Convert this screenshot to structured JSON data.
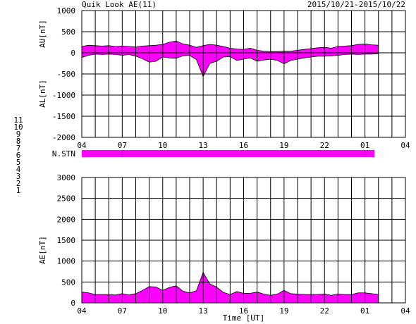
{
  "header": {
    "title": "Quik Look AE(11)",
    "date_range": "2015/10/21-2015/10/22"
  },
  "colors": {
    "fill": "#ff00ff",
    "grid": "#000000",
    "bar_line": "#3030ff"
  },
  "station_counts": [
    {
      "label": "11",
      "color": "#00e5e5"
    },
    {
      "label": "10",
      "color": "#ff00ff"
    },
    {
      "label": "9",
      "color": "#0000cc"
    },
    {
      "label": "8",
      "color": "#e0e000"
    },
    {
      "label": "7",
      "color": "#f0c080"
    },
    {
      "label": "6",
      "color": "#ff0000"
    },
    {
      "label": "5",
      "color": "#c8c8c8"
    },
    {
      "label": "4",
      "color": "#a0a0a0"
    },
    {
      "label": "3",
      "color": "#00b0b0"
    },
    {
      "label": "2",
      "color": "#c000c0"
    },
    {
      "label": "1",
      "color": "#0000cc"
    }
  ],
  "chart_data": [
    {
      "type": "area",
      "ylabel_top": "AU[nT]",
      "ylabel_bottom": "AL[nT]",
      "ylim": [
        -2000,
        1000
      ],
      "yticks": [
        "1000",
        "500",
        "0",
        "-500",
        "-1000",
        "-1500",
        "-2000"
      ],
      "xlim": [
        4,
        28
      ],
      "xticks": [
        "04",
        "07",
        "10",
        "13",
        "16",
        "19",
        "22",
        "01",
        "04"
      ],
      "series": [
        {
          "x": [
            4,
            4.5,
            5,
            5.5,
            6,
            6.5,
            7,
            7.5,
            8,
            8.5,
            9,
            9.5,
            10,
            10.5,
            11,
            11.5,
            12,
            12.5,
            13,
            13.5,
            14,
            14.5,
            15,
            15.5,
            16,
            16.5,
            17,
            17.5,
            18,
            18.5,
            19,
            19.5,
            20,
            20.5,
            21,
            21.5,
            22,
            22.5,
            23,
            23.5,
            24,
            24.5,
            25,
            25.5,
            26
          ],
          "au": [
            150,
            180,
            170,
            160,
            170,
            150,
            160,
            150,
            140,
            160,
            170,
            180,
            200,
            250,
            280,
            210,
            180,
            130,
            170,
            200,
            180,
            150,
            110,
            90,
            80,
            110,
            60,
            40,
            30,
            30,
            40,
            40,
            60,
            80,
            100,
            120,
            130,
            110,
            150,
            160,
            170,
            200,
            210,
            190,
            180
          ],
          "al": [
            -110,
            -60,
            -30,
            -40,
            -30,
            -40,
            -60,
            -40,
            -80,
            -140,
            -220,
            -200,
            -100,
            -120,
            -130,
            -70,
            -60,
            -160,
            -560,
            -250,
            -200,
            -100,
            -90,
            -180,
            -150,
            -120,
            -200,
            -170,
            -150,
            -180,
            -260,
            -180,
            -150,
            -120,
            -100,
            -80,
            -80,
            -70,
            -60,
            -40,
            -30,
            -40,
            -30,
            -30,
            -20
          ]
        }
      ]
    },
    {
      "type": "bar",
      "ylabel": "N.STN",
      "values": [
        11
      ],
      "xlim": [
        4,
        28
      ],
      "x_range": [
        4,
        25.7
      ]
    },
    {
      "type": "area",
      "ylabel": "AE[nT]",
      "xlabel": "Time [UT]",
      "ylim": [
        0,
        3000
      ],
      "yticks": [
        "3000",
        "2500",
        "2000",
        "1500",
        "1000",
        "500",
        "0"
      ],
      "xlim": [
        4,
        28
      ],
      "xticks": [
        "04",
        "07",
        "10",
        "13",
        "16",
        "19",
        "22",
        "01",
        "04"
      ],
      "series": [
        {
          "x": [
            4,
            4.5,
            5,
            5.5,
            6,
            6.5,
            7,
            7.5,
            8,
            8.5,
            9,
            9.5,
            10,
            10.5,
            11,
            11.5,
            12,
            12.5,
            13,
            13.5,
            14,
            14.5,
            15,
            15.5,
            16,
            16.5,
            17,
            17.5,
            18,
            18.5,
            19,
            19.5,
            20,
            20.5,
            21,
            21.5,
            22,
            22.5,
            23,
            23.5,
            24,
            24.5,
            25,
            25.5,
            26
          ],
          "values": [
            260,
            240,
            200,
            200,
            200,
            190,
            220,
            190,
            220,
            300,
            390,
            380,
            300,
            370,
            410,
            280,
            240,
            290,
            730,
            450,
            380,
            250,
            200,
            270,
            230,
            230,
            260,
            210,
            180,
            210,
            300,
            220,
            210,
            200,
            200,
            200,
            210,
            180,
            210,
            200,
            200,
            240,
            240,
            220,
            200
          ]
        }
      ]
    }
  ]
}
